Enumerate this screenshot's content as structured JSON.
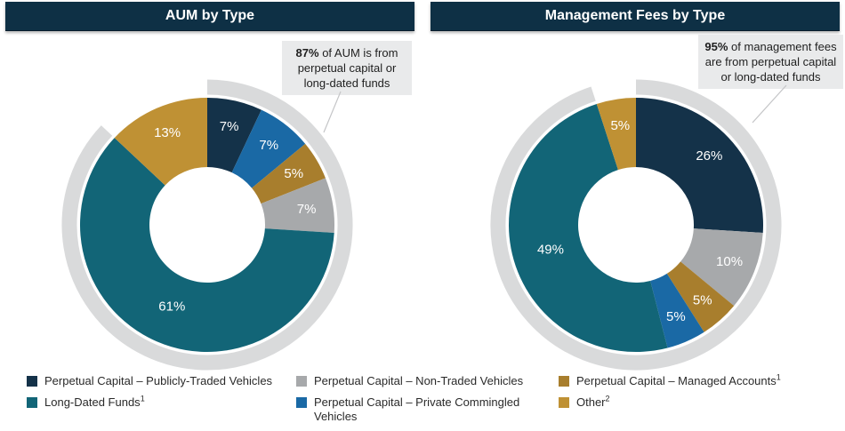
{
  "palette": {
    "header_bg": "#0e3045",
    "navy": "#143249",
    "blue": "#1a69a5",
    "teal": "#126577",
    "gray": "#a7a9ab",
    "gold_dark": "#a87e2d",
    "gold_light": "#bf9134",
    "coverage_arc": "#d9dadb",
    "callout_bg": "#e9eaeb"
  },
  "callouts": [
    {
      "bold": "87%",
      "text": " of AUM is from perpetual capital or long-dated funds"
    },
    {
      "bold": "95%",
      "text": " of management fees are from perpetual capital or long-dated funds"
    }
  ],
  "chart_data": [
    {
      "type": "pie",
      "donut": true,
      "title": "AUM by Type",
      "coverage_arc_pct": 87,
      "segments": [
        {
          "label": "Perpetual Capital – Publicly-Traded Vehicles",
          "value": 7,
          "color": "#143249"
        },
        {
          "label": "Perpetual Capital – Private Commingled Vehicles",
          "value": 7,
          "color": "#1a69a5"
        },
        {
          "label": "Perpetual Capital – Managed Accounts",
          "value": 5,
          "color": "#a87e2d"
        },
        {
          "label": "Perpetual Capital – Non-Traded Vehicles",
          "value": 7,
          "color": "#a7a9ab"
        },
        {
          "label": "Long-Dated Funds",
          "value": 61,
          "color": "#126577"
        },
        {
          "label": "Other",
          "value": 13,
          "color": "#bf9134"
        }
      ]
    },
    {
      "type": "pie",
      "donut": true,
      "title": "Management Fees by Type",
      "coverage_arc_pct": 95,
      "segments": [
        {
          "label": "Perpetual Capital – Publicly-Traded Vehicles",
          "value": 26,
          "color": "#143249"
        },
        {
          "label": "Perpetual Capital – Non-Traded Vehicles",
          "value": 10,
          "color": "#a7a9ab"
        },
        {
          "label": "Perpetual Capital – Managed Accounts",
          "value": 5,
          "color": "#a87e2d"
        },
        {
          "label": "Perpetual Capital – Private Commingled Vehicles",
          "value": 5,
          "color": "#1a69a5"
        },
        {
          "label": "Long-Dated Funds",
          "value": 49,
          "color": "#126577"
        },
        {
          "label": "Other",
          "value": 5,
          "color": "#bf9134"
        }
      ]
    }
  ],
  "legend": {
    "columns": [
      [
        {
          "label": "Perpetual Capital – Publicly-Traded Vehicles",
          "sup": "",
          "color": "#143249"
        },
        {
          "label": "Long-Dated Funds",
          "sup": "1",
          "color": "#126577"
        }
      ],
      [
        {
          "label": "Perpetual Capital – Non-Traded Vehicles",
          "sup": "",
          "color": "#a7a9ab"
        },
        {
          "label": "Perpetual Capital – Private Commingled Vehicles",
          "sup": "",
          "color": "#1a69a5"
        }
      ],
      [
        {
          "label": "Perpetual Capital – Managed Accounts",
          "sup": "1",
          "color": "#a87e2d"
        },
        {
          "label": "Other",
          "sup": "2",
          "color": "#bf9134"
        }
      ]
    ]
  }
}
